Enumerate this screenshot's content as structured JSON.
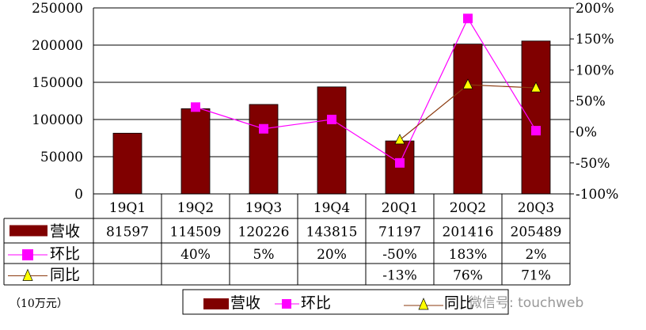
{
  "chart_data": {
    "type": "bar+line",
    "categories": [
      "19Q1",
      "19Q2",
      "19Q3",
      "19Q4",
      "20Q1",
      "20Q2",
      "20Q3"
    ],
    "series": [
      {
        "name": "营收",
        "type": "bar",
        "axis": "left",
        "color": "#800000",
        "values": [
          81597,
          114509,
          120226,
          143815,
          71197,
          201416,
          205489
        ],
        "labels": [
          "81597",
          "114509",
          "120226",
          "143815",
          "71197",
          "201416",
          "205489"
        ]
      },
      {
        "name": "环比",
        "type": "line",
        "axis": "right",
        "color": "#ff00ff",
        "marker": "square",
        "values": [
          null,
          40,
          5,
          20,
          -50,
          183,
          2
        ],
        "labels": [
          "",
          "40%",
          "5%",
          "20%",
          "-50%",
          "183%",
          "2%"
        ]
      },
      {
        "name": "同比",
        "type": "line",
        "axis": "right",
        "color": "#8b3a0f",
        "marker": "triangle",
        "marker_color": "#ffff00",
        "values": [
          null,
          null,
          null,
          null,
          -13,
          76,
          71
        ],
        "labels": [
          "",
          "",
          "",
          "",
          "-13%",
          "76%",
          "71%"
        ]
      }
    ],
    "left_axis": {
      "ylim": [
        0,
        250000
      ],
      "ticks": [
        "0",
        "50000",
        "100000",
        "150000",
        "200000",
        "250000"
      ]
    },
    "right_axis": {
      "ylim": [
        -100,
        200
      ],
      "ticks": [
        "-100%",
        "-50%",
        "0%",
        "50%",
        "100%",
        "150%",
        "200%"
      ]
    },
    "grid": true,
    "legend": "bottom",
    "unit_note": "（10万元）"
  },
  "watermark": "微信号: touchweb"
}
